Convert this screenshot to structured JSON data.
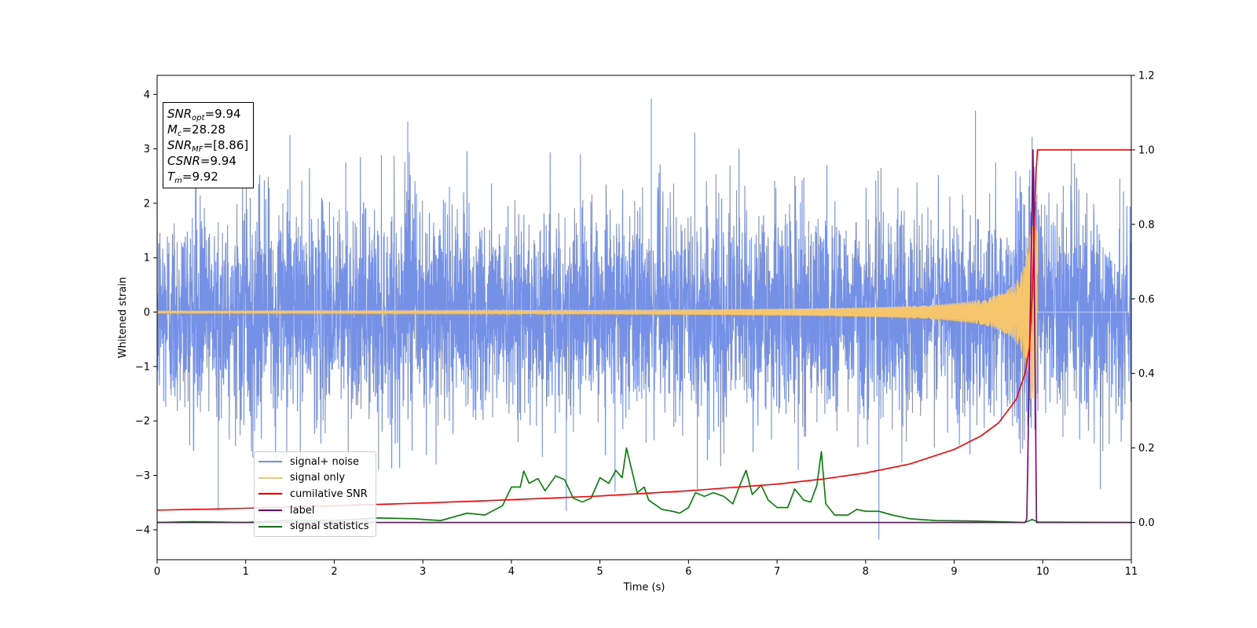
{
  "chart_data": {
    "type": "line",
    "xlabel": "Time (s)",
    "ylabel": "Whitened strain",
    "xlim": [
      0,
      11
    ],
    "ylim_left": [
      -4.55,
      4.35
    ],
    "ylim_right": [
      -0.1,
      1.2
    ],
    "x_ticks": [
      0,
      1,
      2,
      3,
      4,
      5,
      6,
      7,
      8,
      9,
      10,
      11
    ],
    "y_ticks_left": [
      -4,
      -3,
      -2,
      -1,
      0,
      1,
      2,
      3,
      4
    ],
    "y_ticks_right": [
      0.0,
      0.2,
      0.4,
      0.6,
      0.8,
      1.0,
      1.2
    ],
    "tick_labels_x": [
      "0",
      "1",
      "2",
      "3",
      "4",
      "5",
      "6",
      "7",
      "8",
      "9",
      "10",
      "11"
    ],
    "tick_labels_left": [
      "−4",
      "−3",
      "−2",
      "−1",
      "0",
      "1",
      "2",
      "3",
      "4"
    ],
    "tick_labels_right": [
      "0.0",
      "0.2",
      "0.4",
      "0.6",
      "0.8",
      "1.0",
      "1.2"
    ],
    "legend_placement": "lower-left",
    "info_box": {
      "snr_opt_label": "SNR",
      "snr_opt_sub": "opt",
      "snr_opt_value": "=9.94",
      "mc_label": "M",
      "mc_sub": "c",
      "mc_value": "=28.28",
      "snr_mf_label": "SNR",
      "snr_mf_sub": "MF",
      "snr_mf_value": "=[8.86]",
      "csnr_label": "CSNR",
      "csnr_value": "=9.94",
      "tm_label": "T",
      "tm_sub": "m",
      "tm_value": "=9.92"
    },
    "series": [
      {
        "name": "signal+ noise",
        "axis": "left",
        "color": "#7591e6",
        "description_values": "white noise, std ~1, range about -4.2 to 3.9",
        "noise_std": 1.0,
        "spikes": [
          [
            0.69,
            -3.65
          ],
          [
            1.5,
            3.25
          ],
          [
            2.13,
            2.75
          ],
          [
            2.5,
            -2.9
          ],
          [
            2.83,
            3.5
          ],
          [
            3.3,
            2.3
          ],
          [
            4.62,
            -3.65
          ],
          [
            4.7,
            -2.2
          ],
          [
            4.78,
            2.9
          ],
          [
            5.17,
            -3.3
          ],
          [
            5.58,
            3.92
          ],
          [
            5.52,
            -2.4
          ],
          [
            6.07,
            3.3
          ],
          [
            6.1,
            -3.25
          ],
          [
            6.4,
            -2.6
          ],
          [
            6.57,
            3.0
          ],
          [
            7.2,
            2.5
          ],
          [
            7.32,
            -2.2
          ],
          [
            8.15,
            -4.18
          ],
          [
            8.42,
            -2.1
          ],
          [
            9.24,
            3.7
          ],
          [
            9.88,
            3.22
          ],
          [
            10.65,
            -3.25
          ],
          [
            10.87,
            2.45
          ]
        ]
      },
      {
        "name": "signal only",
        "axis": "left",
        "color": "#f5c66c",
        "description_values": "chirp oscillation, amplitude ~0.02 rising to ~1.6 near 9.9 s, ends 9.94 s",
        "end_time": 9.94,
        "peak_amplitude": 1.6
      },
      {
        "name": "cumilative SNR",
        "axis": "right",
        "color": "#ff0000",
        "points": [
          [
            0,
            0.033
          ],
          [
            1,
            0.038
          ],
          [
            2,
            0.045
          ],
          [
            3,
            0.052
          ],
          [
            4,
            0.061
          ],
          [
            5,
            0.071
          ],
          [
            6,
            0.085
          ],
          [
            7,
            0.103
          ],
          [
            7.5,
            0.116
          ],
          [
            8,
            0.133
          ],
          [
            8.5,
            0.157
          ],
          [
            9,
            0.196
          ],
          [
            9.3,
            0.232
          ],
          [
            9.5,
            0.267
          ],
          [
            9.7,
            0.33
          ],
          [
            9.8,
            0.4
          ],
          [
            9.85,
            0.47
          ],
          [
            9.88,
            0.6
          ],
          [
            9.9,
            0.75
          ],
          [
            9.92,
            0.92
          ],
          [
            9.94,
            1.0
          ],
          [
            11,
            1.0
          ]
        ]
      },
      {
        "name": "label",
        "axis": "right",
        "color": "#800080",
        "points": [
          [
            0,
            0.0
          ],
          [
            9.8,
            0.0
          ],
          [
            9.82,
            0.01
          ],
          [
            9.89,
            1.0
          ],
          [
            9.93,
            0.0
          ],
          [
            11,
            0.0
          ]
        ]
      },
      {
        "name": "signal statistics",
        "axis": "right",
        "color": "#008000",
        "points": [
          [
            0,
            0.0
          ],
          [
            0.4,
            0.002
          ],
          [
            1.0,
            0.0
          ],
          [
            1.5,
            0.006
          ],
          [
            2.0,
            0.005
          ],
          [
            2.5,
            0.012
          ],
          [
            2.9,
            0.01
          ],
          [
            3.2,
            0.005
          ],
          [
            3.5,
            0.025
          ],
          [
            3.7,
            0.02
          ],
          [
            3.9,
            0.045
          ],
          [
            4.0,
            0.095
          ],
          [
            4.1,
            0.095
          ],
          [
            4.14,
            0.138
          ],
          [
            4.2,
            0.105
          ],
          [
            4.3,
            0.118
          ],
          [
            4.38,
            0.085
          ],
          [
            4.5,
            0.125
          ],
          [
            4.6,
            0.115
          ],
          [
            4.7,
            0.065
          ],
          [
            4.8,
            0.055
          ],
          [
            4.9,
            0.065
          ],
          [
            5.0,
            0.12
          ],
          [
            5.1,
            0.105
          ],
          [
            5.18,
            0.14
          ],
          [
            5.25,
            0.12
          ],
          [
            5.3,
            0.2
          ],
          [
            5.35,
            0.15
          ],
          [
            5.42,
            0.08
          ],
          [
            5.5,
            0.095
          ],
          [
            5.55,
            0.06
          ],
          [
            5.7,
            0.035
          ],
          [
            5.82,
            0.03
          ],
          [
            5.9,
            0.025
          ],
          [
            6.0,
            0.04
          ],
          [
            6.08,
            0.08
          ],
          [
            6.18,
            0.07
          ],
          [
            6.28,
            0.08
          ],
          [
            6.4,
            0.07
          ],
          [
            6.5,
            0.05
          ],
          [
            6.58,
            0.1
          ],
          [
            6.65,
            0.14
          ],
          [
            6.72,
            0.075
          ],
          [
            6.82,
            0.1
          ],
          [
            6.9,
            0.06
          ],
          [
            7.0,
            0.04
          ],
          [
            7.12,
            0.04
          ],
          [
            7.2,
            0.09
          ],
          [
            7.3,
            0.06
          ],
          [
            7.38,
            0.055
          ],
          [
            7.45,
            0.1
          ],
          [
            7.5,
            0.19
          ],
          [
            7.55,
            0.05
          ],
          [
            7.65,
            0.02
          ],
          [
            7.8,
            0.02
          ],
          [
            7.9,
            0.035
          ],
          [
            8.0,
            0.03
          ],
          [
            8.15,
            0.03
          ],
          [
            8.3,
            0.02
          ],
          [
            8.5,
            0.01
          ],
          [
            8.8,
            0.005
          ],
          [
            9.2,
            0.004
          ],
          [
            9.8,
            0.0
          ],
          [
            9.88,
            0.008
          ],
          [
            9.95,
            0.001
          ],
          [
            11,
            0.0
          ]
        ]
      }
    ]
  }
}
